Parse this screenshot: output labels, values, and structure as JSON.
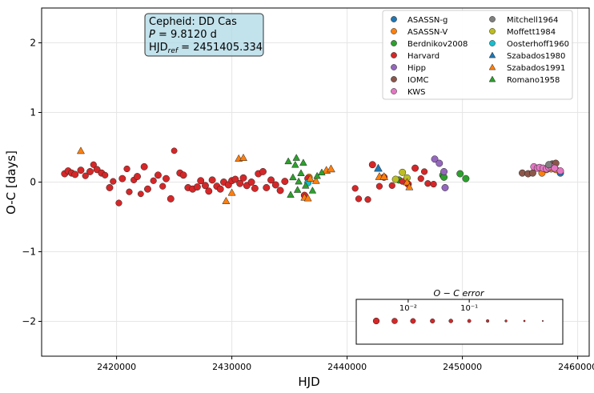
{
  "chart_data": {
    "type": "scatter",
    "xlabel": "HJD",
    "ylabel": "O-C [days]",
    "xlim": [
      2413500,
      2461000
    ],
    "ylim": [
      -2.5,
      2.5
    ],
    "xticks": [
      2420000,
      2430000,
      2440000,
      2450000,
      2460000
    ],
    "yticks": [
      -2,
      -1,
      0,
      1,
      2
    ],
    "xtick_labels": [
      "2420000",
      "2430000",
      "2440000",
      "2450000",
      "2460000"
    ],
    "ytick_labels": [
      "−2",
      "−1",
      "0",
      "1",
      "2"
    ],
    "grid": true,
    "info_box": {
      "line1": "Cepheid: DD Cas",
      "line2_prefix": "P",
      "line2_value": " = 9.8120 d",
      "line3_prefix": "HJD",
      "line3_sub": "ref",
      "line3_value": " = 2451405.334"
    },
    "legend_placement": "top-right",
    "size_legend": {
      "title": "O − C error",
      "tick_labels": [
        "10⁻²",
        "10⁻¹"
      ],
      "tick_values": [
        0.01,
        0.1
      ],
      "errors": [
        0.003,
        0.006,
        0.012,
        0.025,
        0.05,
        0.1,
        0.2,
        0.4,
        0.8,
        1.6
      ],
      "placement": "lower-right"
    },
    "series": [
      {
        "name": "ASASSN-g",
        "marker": "circle",
        "color": "#1f77b4",
        "points": [
          [
            2458500,
            0.13,
            0.01
          ]
        ]
      },
      {
        "name": "ASASSN-V",
        "marker": "circle",
        "color": "#ff7f0e",
        "points": [
          [
            2436700,
            0.07,
            0.01
          ],
          [
            2456900,
            0.13,
            0.01
          ],
          [
            2457300,
            0.18,
            0.01
          ],
          [
            2457700,
            0.19,
            0.01
          ],
          [
            2458100,
            0.18,
            0.01
          ]
        ]
      },
      {
        "name": "Berdnikov2008",
        "marker": "circle",
        "color": "#2ca02c",
        "points": [
          [
            2444500,
            0.03,
            0.01
          ],
          [
            2448300,
            0.1,
            0.01
          ],
          [
            2448400,
            0.07,
            0.01
          ],
          [
            2449800,
            0.12,
            0.01
          ],
          [
            2450300,
            0.05,
            0.01
          ]
        ]
      },
      {
        "name": "Harvard",
        "marker": "circle",
        "color": "#d62728",
        "points": [
          [
            2415500,
            0.12,
            0.01
          ],
          [
            2415800,
            0.16,
            0.01
          ],
          [
            2416100,
            0.13,
            0.01
          ],
          [
            2416400,
            0.11,
            0.01
          ],
          [
            2416900,
            0.17,
            0.01
          ],
          [
            2417300,
            0.09,
            0.02
          ],
          [
            2417700,
            0.15,
            0.01
          ],
          [
            2418000,
            0.25,
            0.02
          ],
          [
            2418300,
            0.18,
            0.01
          ],
          [
            2418700,
            0.13,
            0.01
          ],
          [
            2419000,
            0.1,
            0.02
          ],
          [
            2419400,
            -0.08,
            0.01
          ],
          [
            2419700,
            0.01,
            0.02
          ],
          [
            2420200,
            -0.3,
            0.02
          ],
          [
            2420500,
            0.05,
            0.01
          ],
          [
            2420900,
            0.19,
            0.02
          ],
          [
            2421100,
            -0.14,
            0.02
          ],
          [
            2421500,
            0.03,
            0.02
          ],
          [
            2421800,
            0.08,
            0.01
          ],
          [
            2422100,
            -0.17,
            0.03
          ],
          [
            2422400,
            0.22,
            0.01
          ],
          [
            2422700,
            -0.1,
            0.01
          ],
          [
            2423200,
            0.02,
            0.02
          ],
          [
            2423600,
            0.1,
            0.01
          ],
          [
            2424000,
            -0.06,
            0.02
          ],
          [
            2424300,
            0.05,
            0.01
          ],
          [
            2424700,
            -0.24,
            0.01
          ],
          [
            2425000,
            0.45,
            0.03
          ],
          [
            2425500,
            0.13,
            0.01
          ],
          [
            2425800,
            0.1,
            0.01
          ],
          [
            2426200,
            -0.08,
            0.01
          ],
          [
            2426600,
            -0.1,
            0.01
          ],
          [
            2427000,
            -0.07,
            0.01
          ],
          [
            2427300,
            0.02,
            0.01
          ],
          [
            2427700,
            -0.05,
            0.01
          ],
          [
            2428000,
            -0.13,
            0.01
          ],
          [
            2428300,
            0.03,
            0.01
          ],
          [
            2428700,
            -0.06,
            0.01
          ],
          [
            2429000,
            -0.1,
            0.01
          ],
          [
            2429300,
            0.0,
            0.01
          ],
          [
            2429700,
            -0.04,
            0.01
          ],
          [
            2430000,
            0.02,
            0.01
          ],
          [
            2430300,
            0.04,
            0.01
          ],
          [
            2430700,
            -0.02,
            0.01
          ],
          [
            2431000,
            0.06,
            0.01
          ],
          [
            2431300,
            -0.05,
            0.01
          ],
          [
            2431700,
            0.0,
            0.01
          ],
          [
            2432000,
            -0.09,
            0.01
          ],
          [
            2432300,
            0.12,
            0.01
          ],
          [
            2432700,
            0.15,
            0.01
          ],
          [
            2433000,
            -0.08,
            0.01
          ],
          [
            2433400,
            0.03,
            0.01
          ],
          [
            2433800,
            -0.04,
            0.01
          ],
          [
            2434200,
            -0.12,
            0.01
          ],
          [
            2434600,
            0.01,
            0.01
          ],
          [
            2436300,
            -0.19,
            0.01
          ],
          [
            2436600,
            0.05,
            0.01
          ],
          [
            2440700,
            -0.09,
            0.02
          ],
          [
            2441000,
            -0.24,
            0.02
          ],
          [
            2441800,
            -0.25,
            0.02
          ],
          [
            2442200,
            0.25,
            0.01
          ],
          [
            2442800,
            -0.06,
            0.02
          ],
          [
            2443200,
            0.07,
            0.01
          ],
          [
            2443900,
            -0.05,
            0.02
          ],
          [
            2444800,
            0.01,
            0.02
          ],
          [
            2445300,
            -0.03,
            0.01
          ],
          [
            2445900,
            0.2,
            0.01
          ],
          [
            2446400,
            0.05,
            0.02
          ],
          [
            2446700,
            0.15,
            0.02
          ],
          [
            2447000,
            -0.02,
            0.02
          ],
          [
            2447500,
            -0.03,
            0.02
          ]
        ]
      },
      {
        "name": "Hipp",
        "marker": "circle",
        "color": "#9467bd",
        "points": [
          [
            2447600,
            0.33,
            0.01
          ],
          [
            2448000,
            0.27,
            0.01
          ],
          [
            2448400,
            0.15,
            0.01
          ],
          [
            2448500,
            -0.08,
            0.01
          ]
        ]
      },
      {
        "name": "IOMC",
        "marker": "circle",
        "color": "#8c564b",
        "points": [
          [
            2455200,
            0.13,
            0.01
          ],
          [
            2455700,
            0.12,
            0.01
          ],
          [
            2456100,
            0.13,
            0.01
          ],
          [
            2457800,
            0.26,
            0.01
          ],
          [
            2458100,
            0.27,
            0.01
          ]
        ]
      },
      {
        "name": "KWS",
        "marker": "circle",
        "color": "#e377c2",
        "points": [
          [
            2456200,
            0.22,
            0.01
          ],
          [
            2456500,
            0.2,
            0.01
          ],
          [
            2456700,
            0.21,
            0.01
          ],
          [
            2457000,
            0.2,
            0.01
          ],
          [
            2457300,
            0.19,
            0.01
          ],
          [
            2457500,
            0.21,
            0.01
          ],
          [
            2457700,
            0.22,
            0.01
          ],
          [
            2458000,
            0.2,
            0.01
          ],
          [
            2458500,
            0.16,
            0.01
          ]
        ]
      },
      {
        "name": "Mitchell1964",
        "marker": "circle",
        "color": "#7f7f7f",
        "points": [
          [
            2457500,
            0.25,
            0.01
          ]
        ]
      },
      {
        "name": "Moffett1984",
        "marker": "circle",
        "color": "#bcbd22",
        "points": [
          [
            2444200,
            0.04,
            0.01
          ],
          [
            2444800,
            0.14,
            0.01
          ],
          [
            2445200,
            0.06,
            0.01
          ]
        ]
      },
      {
        "name": "Oosterhoff1960",
        "marker": "circle",
        "color": "#17becf",
        "points": [
          [
            2436600,
            -0.01,
            0.01
          ]
        ]
      },
      {
        "name": "Szabados1980",
        "marker": "triangle",
        "color": "#1f77b4",
        "points": [
          [
            2442700,
            0.2,
            0.01
          ]
        ]
      },
      {
        "name": "Szabados1991",
        "marker": "triangle",
        "color": "#ff7f0e",
        "points": [
          [
            2416900,
            0.45,
            0.02
          ],
          [
            2429500,
            -0.27,
            0.02
          ],
          [
            2430000,
            -0.15,
            0.02
          ],
          [
            2430600,
            0.34,
            0.02
          ],
          [
            2431000,
            0.35,
            0.02
          ],
          [
            2436300,
            -0.22,
            0.02
          ],
          [
            2436600,
            -0.23,
            0.02
          ],
          [
            2436800,
            0.05,
            0.02
          ],
          [
            2437300,
            0.02,
            0.02
          ],
          [
            2438200,
            0.17,
            0.01
          ],
          [
            2438600,
            0.19,
            0.01
          ],
          [
            2442800,
            0.08,
            0.01
          ],
          [
            2443200,
            0.08,
            0.01
          ],
          [
            2445200,
            0.0,
            0.02
          ],
          [
            2445400,
            -0.07,
            0.02
          ]
        ]
      },
      {
        "name": "Romano1958",
        "marker": "triangle",
        "color": "#2ca02c",
        "points": [
          [
            2434900,
            0.3,
            0.03
          ],
          [
            2435100,
            -0.18,
            0.03
          ],
          [
            2435300,
            0.07,
            0.03
          ],
          [
            2435500,
            0.25,
            0.03
          ],
          [
            2435600,
            0.35,
            0.03
          ],
          [
            2435700,
            -0.11,
            0.03
          ],
          [
            2435800,
            0.01,
            0.03
          ],
          [
            2436000,
            0.13,
            0.03
          ],
          [
            2436200,
            0.28,
            0.03
          ],
          [
            2436400,
            -0.05,
            0.03
          ],
          [
            2437000,
            -0.12,
            0.03
          ],
          [
            2437400,
            0.09,
            0.03
          ],
          [
            2437800,
            0.14,
            0.03
          ]
        ]
      }
    ]
  }
}
